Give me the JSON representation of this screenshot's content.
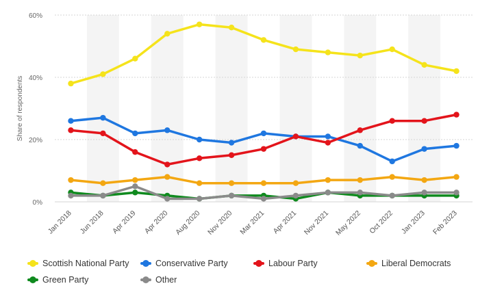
{
  "chart_data": {
    "type": "line",
    "title": "",
    "xlabel": "",
    "ylabel": "Share of respondents",
    "y_ticks": [
      "0%",
      "20%",
      "40%",
      "60%"
    ],
    "ylim": [
      0,
      60
    ],
    "categories": [
      "Jan 2018",
      "Jun 2018",
      "Apr 2019",
      "Apr 2020",
      "Aug 2020",
      "Nov 2020",
      "Mar 2021",
      "Apr 2021",
      "Nov 2021",
      "May 2022",
      "Oct 2022",
      "Jan 2023",
      "Feb 2023"
    ],
    "series": [
      {
        "name": "Scottish National Party",
        "color": "#f5e31b",
        "values": [
          38,
          41,
          46,
          54,
          57,
          56,
          52,
          49,
          48,
          47,
          49,
          44,
          42
        ]
      },
      {
        "name": "Conservative Party",
        "color": "#1f77e0",
        "values": [
          26,
          27,
          22,
          23,
          20,
          19,
          22,
          21,
          21,
          18,
          13,
          17,
          18
        ]
      },
      {
        "name": "Labour Party",
        "color": "#e3141b",
        "values": [
          23,
          22,
          16,
          12,
          14,
          15,
          17,
          21,
          19,
          23,
          26,
          26,
          28
        ]
      },
      {
        "name": "Liberal Democrats",
        "color": "#f3a712",
        "values": [
          7,
          6,
          7,
          8,
          6,
          6,
          6,
          6,
          7,
          7,
          8,
          7,
          8
        ]
      },
      {
        "name": "Green Party",
        "color": "#0f8a1e",
        "values": [
          3,
          2,
          3,
          2,
          1,
          2,
          2,
          1,
          3,
          2,
          2,
          2,
          2
        ]
      },
      {
        "name": "Other",
        "color": "#8a8a8a",
        "values": [
          2,
          2,
          5,
          1,
          1,
          2,
          1,
          2,
          3,
          3,
          2,
          3,
          3
        ]
      }
    ],
    "grid": true,
    "legend_position": "bottom"
  }
}
